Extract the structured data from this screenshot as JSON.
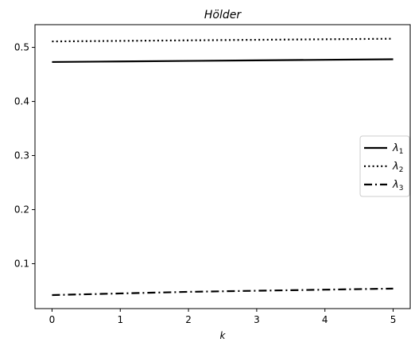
{
  "chart_data": {
    "type": "line",
    "title": "Hölder",
    "xlabel": "k",
    "ylabel": "",
    "xlim": [
      -0.25,
      5.25
    ],
    "ylim": [
      0.017,
      0.542
    ],
    "xticks": [
      0,
      1,
      2,
      3,
      4,
      5
    ],
    "yticks": [
      0.1,
      0.2,
      0.3,
      0.4,
      0.5
    ],
    "grid": false,
    "legend_position": "center-right",
    "series": [
      {
        "name": "λ1",
        "symbol": "λ",
        "subscript": "1",
        "style": "solid",
        "color": "#000000",
        "x": [
          0,
          1,
          2,
          3,
          4,
          5
        ],
        "y": [
          0.473,
          0.474,
          0.475,
          0.476,
          0.477,
          0.478
        ]
      },
      {
        "name": "λ2",
        "symbol": "λ",
        "subscript": "2",
        "style": "dotted",
        "color": "#000000",
        "x": [
          0,
          1,
          2,
          3,
          4,
          5
        ],
        "y": [
          0.511,
          0.512,
          0.513,
          0.514,
          0.515,
          0.516
        ]
      },
      {
        "name": "λ3",
        "symbol": "λ",
        "subscript": "3",
        "style": "dashdot",
        "color": "#000000",
        "x": [
          0,
          1,
          2,
          3,
          4,
          5
        ],
        "y": [
          0.042,
          0.045,
          0.048,
          0.05,
          0.052,
          0.054
        ]
      }
    ]
  }
}
